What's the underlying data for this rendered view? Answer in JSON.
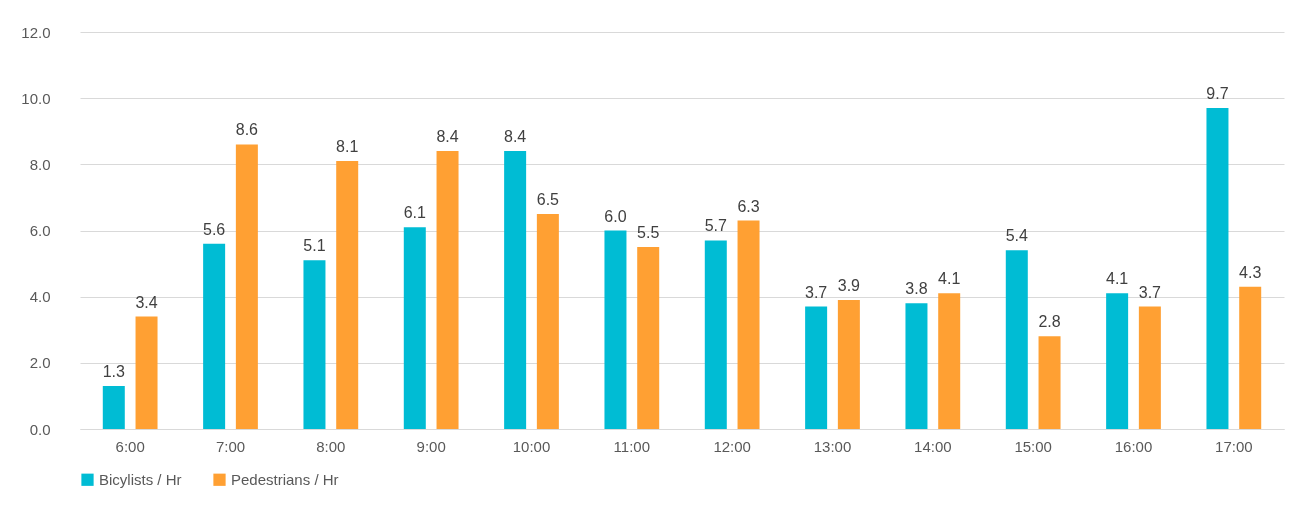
{
  "chart_data": {
    "type": "bar",
    "categories": [
      "6:00",
      "7:00",
      "8:00",
      "9:00",
      "10:00",
      "11:00",
      "12:00",
      "13:00",
      "14:00",
      "15:00",
      "16:00",
      "17:00"
    ],
    "series": [
      {
        "name": "Bicylists / Hr",
        "color": "#00bcd4",
        "values": [
          1.3,
          5.6,
          5.1,
          6.1,
          8.4,
          6.0,
          5.7,
          3.7,
          3.8,
          5.4,
          4.1,
          9.7
        ],
        "value_labels": [
          "1.3",
          "5.6",
          "5.1",
          "6.1",
          "8.4",
          "6.0",
          "5.7",
          "3.7",
          "3.8",
          "5.4",
          "4.1",
          "9.7"
        ]
      },
      {
        "name": "Pedestrians / Hr",
        "color": "#ffa033",
        "values": [
          3.4,
          8.6,
          8.1,
          8.4,
          6.5,
          5.5,
          6.3,
          3.9,
          4.1,
          2.8,
          3.7,
          4.3
        ],
        "value_labels": [
          "3.4",
          "8.6",
          "8.1",
          "8.4",
          "6.5",
          "5.5",
          "6.3",
          "3.9",
          "4.1",
          "2.8",
          "3.7",
          "4.3"
        ]
      }
    ],
    "ylim": [
      0,
      12
    ],
    "yticks": [
      {
        "value": 0,
        "label": "0.0"
      },
      {
        "value": 2,
        "label": "2.0"
      },
      {
        "value": 4,
        "label": "4.0"
      },
      {
        "value": 6,
        "label": "6.0"
      },
      {
        "value": 8,
        "label": "8.0"
      },
      {
        "value": 10,
        "label": "10.0"
      },
      {
        "value": 12,
        "label": "12.0"
      }
    ],
    "grid": "y",
    "legend": "bottom"
  }
}
